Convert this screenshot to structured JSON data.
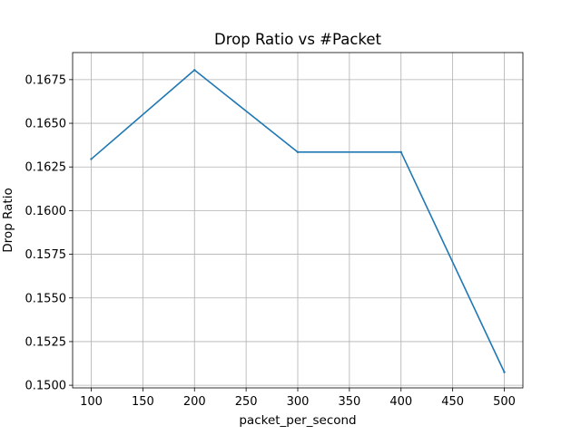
{
  "chart_data": {
    "type": "line",
    "title": "Drop Ratio vs #Packet",
    "xlabel": "packet_per_second",
    "ylabel": "Drop Ratio",
    "x": [
      100,
      200,
      300,
      400,
      500
    ],
    "series": [
      {
        "values": [
          0.16295,
          0.16805,
          0.16335,
          0.16335,
          0.15075
        ],
        "color": "#1f77b4"
      }
    ],
    "xlim": [
      82,
      518
    ],
    "ylim": [
      0.14985,
      0.16905
    ],
    "xticks": [
      100,
      150,
      200,
      250,
      300,
      350,
      400,
      450,
      500
    ],
    "xtick_labels": [
      "100",
      "150",
      "200",
      "250",
      "300",
      "350",
      "400",
      "450",
      "500"
    ],
    "yticks": [
      0.15,
      0.1525,
      0.155,
      0.1575,
      0.16,
      0.1625,
      0.165,
      0.1675
    ],
    "ytick_labels": [
      "0.1500",
      "0.1525",
      "0.1550",
      "0.1575",
      "0.1600",
      "0.1625",
      "0.1650",
      "0.1675"
    ],
    "grid": true,
    "legend": "none"
  }
}
